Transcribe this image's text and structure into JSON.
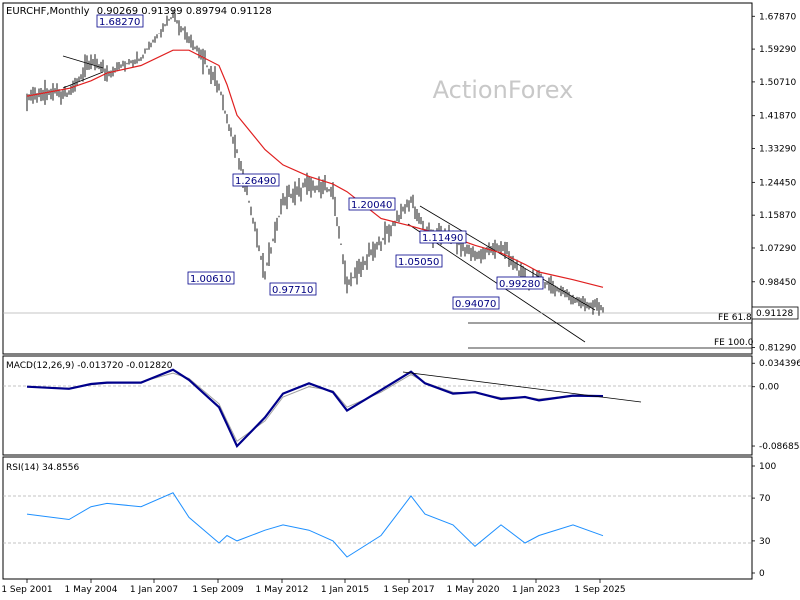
{
  "header": {
    "symbol": "EURCHF,Monthly",
    "ohlc": "0.90269 0.91399 0.89794 0.91128"
  },
  "watermark": "ActionForex",
  "price_panel": {
    "current_price": "0.91128",
    "y_ticks": [
      "1.67870",
      "1.59290",
      "1.50710",
      "1.41870",
      "1.33290",
      "1.24450",
      "1.15870",
      "1.07290",
      "0.98450",
      "0.90370",
      "0.81290"
    ],
    "fe_labels": [
      "FE 61.8",
      "FE 100.0"
    ],
    "annotations": [
      "1.68270",
      "1.26490",
      "1.00610",
      "0.97710",
      "1.20040",
      "1.05050",
      "1.11490",
      "0.99280",
      "0.94070"
    ]
  },
  "macd_panel": {
    "label": "MACD(12,26,9) -0.013720 -0.012820",
    "y_ticks": [
      "0.034396",
      "0.00",
      "-0.086854"
    ]
  },
  "rsi_panel": {
    "label": "RSI(14) 34.8556",
    "y_ticks": [
      "100",
      "70",
      "30",
      "0"
    ]
  },
  "x_ticks": [
    "1 Sep 2001",
    "1 May 2004",
    "1 Jan 2007",
    "1 Sep 2009",
    "1 May 2012",
    "1 Jan 2015",
    "1 Sep 2017",
    "1 May 2020",
    "1 Jan 2023",
    "1 Sep 2025"
  ],
  "colors": {
    "price_bars": "#1a1a1a",
    "ma_line": "#e02020",
    "macd_line": "#00008b",
    "signal_line": "#a0a0a0",
    "rsi_line": "#1e90ff",
    "label_border": "#00008b"
  },
  "chart_data": [
    {
      "type": "line",
      "title": "EURCHF,Monthly",
      "x": [
        "2001-09",
        "2003-06",
        "2004-05",
        "2005-01",
        "2006-06",
        "2007-10",
        "2008-06",
        "2009-09",
        "2010-01",
        "2010-06",
        "2011-08",
        "2012-05",
        "2013-06",
        "2014-06",
        "2015-01",
        "2016-06",
        "2017-09",
        "2018-04",
        "2019-06",
        "2020-05",
        "2021-06",
        "2022-06",
        "2023-01",
        "2024-06",
        "2025-09"
      ],
      "series": [
        {
          "name": "price",
          "values": [
            1.47,
            1.48,
            1.56,
            1.53,
            1.57,
            1.6827,
            1.62,
            1.5,
            1.4,
            1.33,
            1.006,
            1.2,
            1.24,
            1.22,
            0.977,
            1.09,
            1.2004,
            1.1149,
            1.1,
            1.0505,
            1.08,
            0.99,
            0.9928,
            0.94,
            0.91128
          ]
        },
        {
          "name": "MA",
          "values": [
            1.47,
            1.49,
            1.51,
            1.53,
            1.55,
            1.59,
            1.59,
            1.55,
            1.5,
            1.42,
            1.33,
            1.29,
            1.26,
            1.24,
            1.22,
            1.15,
            1.13,
            1.12,
            1.1,
            1.08,
            1.06,
            1.03,
            1.01,
            0.99,
            0.97
          ]
        }
      ],
      "ylim": [
        0.7957,
        1.7134
      ]
    },
    {
      "type": "line",
      "title": "MACD(12,26,9) -0.013720 -0.012820",
      "x": [
        "2001-09",
        "2003-06",
        "2004-05",
        "2005-01",
        "2006-06",
        "2007-10",
        "2008-06",
        "2009-09",
        "2010-01",
        "2010-06",
        "2011-08",
        "2012-05",
        "2013-06",
        "2014-06",
        "2015-01",
        "2016-06",
        "2017-09",
        "2018-04",
        "2019-06",
        "2020-05",
        "2021-06",
        "2022-06",
        "2023-01",
        "2024-06",
        "2025-09"
      ],
      "series": [
        {
          "name": "MACD",
          "values": [
            0.0,
            -0.003,
            0.004,
            0.006,
            0.006,
            0.025,
            0.01,
            -0.03,
            -0.055,
            -0.087,
            -0.045,
            -0.01,
            0.005,
            -0.008,
            -0.035,
            -0.005,
            0.022,
            0.005,
            -0.01,
            -0.008,
            -0.018,
            -0.015,
            -0.02,
            -0.013,
            -0.0137
          ]
        },
        {
          "name": "signal",
          "values": [
            0.0,
            -0.002,
            0.003,
            0.005,
            0.007,
            0.02,
            0.012,
            -0.025,
            -0.05,
            -0.08,
            -0.05,
            -0.015,
            0.0,
            -0.006,
            -0.03,
            -0.008,
            0.018,
            0.006,
            -0.008,
            -0.009,
            -0.016,
            -0.015,
            -0.018,
            -0.013,
            -0.0128
          ]
        }
      ],
      "ylim": [
        -0.1,
        0.045
      ]
    },
    {
      "type": "line",
      "title": "RSI(14) 34.8556",
      "x": [
        "2001-09",
        "2003-06",
        "2004-05",
        "2005-01",
        "2006-06",
        "2007-10",
        "2008-06",
        "2009-09",
        "2010-01",
        "2010-06",
        "2011-08",
        "2012-05",
        "2013-06",
        "2014-06",
        "2015-01",
        "2016-06",
        "2017-09",
        "2018-04",
        "2019-06",
        "2020-05",
        "2021-06",
        "2022-06",
        "2023-01",
        "2024-06",
        "2025-09"
      ],
      "series": [
        {
          "name": "RSI",
          "values": [
            55,
            50,
            62,
            65,
            62,
            75,
            52,
            28,
            35,
            30,
            40,
            45,
            40,
            30,
            15,
            35,
            72,
            55,
            45,
            25,
            45,
            28,
            35,
            45,
            34.9
          ]
        }
      ],
      "ylim": [
        0,
        100
      ]
    }
  ]
}
